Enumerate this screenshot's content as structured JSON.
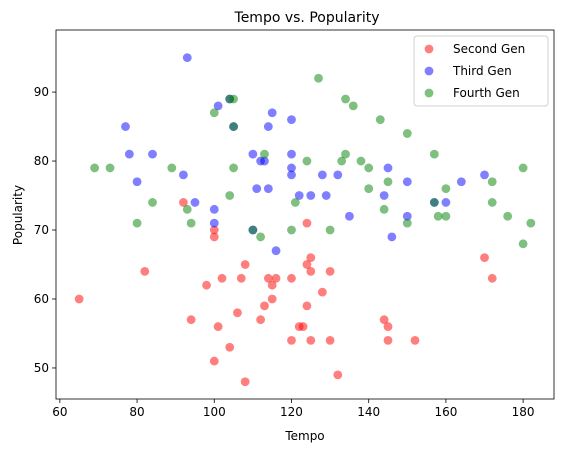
{
  "chart_data": {
    "type": "scatter",
    "title": "Tempo vs. Popularity",
    "xlabel": "Tempo",
    "ylabel": "Popularity",
    "xlim": [
      59,
      188
    ],
    "ylim": [
      45.5,
      99
    ],
    "xticks": [
      60,
      80,
      100,
      120,
      140,
      160,
      180
    ],
    "yticks": [
      50,
      60,
      70,
      80,
      90
    ],
    "grid": false,
    "legend_position": "top-right",
    "series": [
      {
        "name": "Second Gen",
        "color": "#ff0000",
        "points": [
          [
            65,
            60
          ],
          [
            82,
            64
          ],
          [
            92,
            74
          ],
          [
            94,
            57
          ],
          [
            98,
            62
          ],
          [
            100,
            51
          ],
          [
            100,
            69
          ],
          [
            100,
            70
          ],
          [
            101,
            56
          ],
          [
            102,
            63
          ],
          [
            104,
            53
          ],
          [
            106,
            58
          ],
          [
            107,
            63
          ],
          [
            108,
            48
          ],
          [
            108,
            65
          ],
          [
            112,
            57
          ],
          [
            113,
            59
          ],
          [
            114,
            63
          ],
          [
            115,
            60
          ],
          [
            115,
            62
          ],
          [
            116,
            63
          ],
          [
            120,
            54
          ],
          [
            120,
            63
          ],
          [
            122,
            56
          ],
          [
            123,
            56
          ],
          [
            124,
            59
          ],
          [
            124,
            65
          ],
          [
            124,
            71
          ],
          [
            125,
            54
          ],
          [
            125,
            64
          ],
          [
            125,
            66
          ],
          [
            128,
            61
          ],
          [
            130,
            54
          ],
          [
            130,
            64
          ],
          [
            132,
            49
          ],
          [
            144,
            57
          ],
          [
            145,
            54
          ],
          [
            145,
            56
          ],
          [
            152,
            54
          ],
          [
            170,
            66
          ],
          [
            172,
            63
          ]
        ]
      },
      {
        "name": "Third Gen",
        "color": "#0000ff",
        "points": [
          [
            77,
            85
          ],
          [
            78,
            81
          ],
          [
            80,
            77
          ],
          [
            84,
            81
          ],
          [
            92,
            78
          ],
          [
            93,
            95
          ],
          [
            95,
            74
          ],
          [
            100,
            71
          ],
          [
            100,
            73
          ],
          [
            101,
            88
          ],
          [
            104,
            89
          ],
          [
            105,
            85
          ],
          [
            110,
            70
          ],
          [
            110,
            81
          ],
          [
            111,
            76
          ],
          [
            112,
            80
          ],
          [
            113,
            80
          ],
          [
            114,
            76
          ],
          [
            114,
            85
          ],
          [
            115,
            87
          ],
          [
            116,
            67
          ],
          [
            120,
            79
          ],
          [
            120,
            78
          ],
          [
            120,
            81
          ],
          [
            120,
            86
          ],
          [
            122,
            75
          ],
          [
            125,
            75
          ],
          [
            128,
            78
          ],
          [
            129,
            75
          ],
          [
            132,
            78
          ],
          [
            135,
            72
          ],
          [
            144,
            75
          ],
          [
            145,
            79
          ],
          [
            146,
            69
          ],
          [
            150,
            77
          ],
          [
            150,
            72
          ],
          [
            157,
            74
          ],
          [
            160,
            74
          ],
          [
            164,
            77
          ],
          [
            170,
            78
          ]
        ]
      },
      {
        "name": "Fourth Gen",
        "color": "#008000",
        "points": [
          [
            69,
            79
          ],
          [
            73,
            79
          ],
          [
            80,
            71
          ],
          [
            84,
            74
          ],
          [
            89,
            79
          ],
          [
            93,
            73
          ],
          [
            94,
            71
          ],
          [
            100,
            87
          ],
          [
            104,
            75
          ],
          [
            104,
            89
          ],
          [
            105,
            79
          ],
          [
            105,
            85
          ],
          [
            105,
            89
          ],
          [
            110,
            70
          ],
          [
            112,
            69
          ],
          [
            113,
            81
          ],
          [
            120,
            70
          ],
          [
            121,
            74
          ],
          [
            124,
            80
          ],
          [
            127,
            92
          ],
          [
            130,
            70
          ],
          [
            133,
            80
          ],
          [
            134,
            81
          ],
          [
            134,
            89
          ],
          [
            136,
            88
          ],
          [
            138,
            80
          ],
          [
            140,
            76
          ],
          [
            140,
            79
          ],
          [
            143,
            86
          ],
          [
            144,
            73
          ],
          [
            145,
            77
          ],
          [
            150,
            84
          ],
          [
            150,
            71
          ],
          [
            157,
            74
          ],
          [
            157,
            81
          ],
          [
            158,
            72
          ],
          [
            160,
            76
          ],
          [
            160,
            72
          ],
          [
            172,
            74
          ],
          [
            172,
            77
          ],
          [
            176,
            72
          ],
          [
            180,
            79
          ],
          [
            180,
            68
          ],
          [
            182,
            71
          ]
        ]
      }
    ]
  }
}
